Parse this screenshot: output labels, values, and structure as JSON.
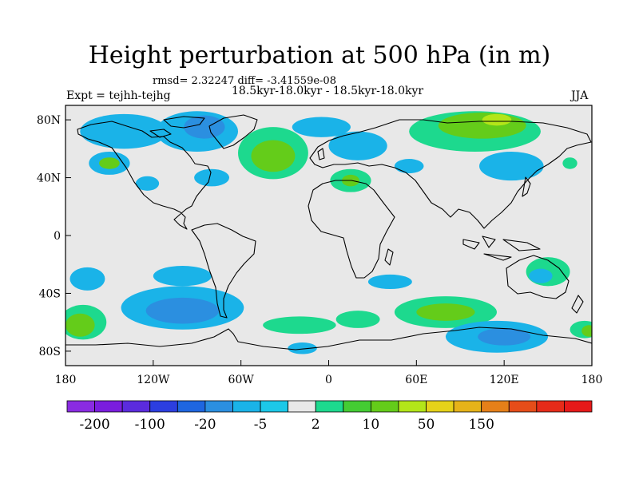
{
  "title": "Height perturbation at 500 hPa (in m)",
  "stats": "rmsd= 2.32247  diff= -3.41559e-08",
  "subtitle": "18.5kyr-18.0kyr - 18.5kyr-18.0kyr",
  "left_label": "Expt = tejhh-tejhg",
  "right_label": "JJA",
  "map": {
    "projection": "cylindrical equidistant",
    "lon_range": [
      -180,
      180
    ],
    "lat_range": [
      -90,
      90
    ],
    "lat_ticks": [
      {
        "lat": 80,
        "label": "80N"
      },
      {
        "lat": 40,
        "label": "40N"
      },
      {
        "lat": 0,
        "label": "0"
      },
      {
        "lat": -40,
        "label": "40S"
      },
      {
        "lat": -80,
        "label": "80S"
      }
    ],
    "lon_ticks": [
      {
        "lon": -180,
        "label": "180"
      },
      {
        "lon": -120,
        "label": "120W"
      },
      {
        "lon": -60,
        "label": "60W"
      },
      {
        "lon": 0,
        "label": "0"
      },
      {
        "lon": 60,
        "label": "60E"
      },
      {
        "lon": 120,
        "label": "120E"
      },
      {
        "lon": 180,
        "label": "180"
      }
    ],
    "background_color": "#e8e8e8",
    "anomalies": [
      {
        "lon": -140,
        "lat": 72,
        "rx": 30,
        "ry": 12,
        "color": "#1ab3e8"
      },
      {
        "lon": -90,
        "lat": 72,
        "rx": 28,
        "ry": 14,
        "color": "#1ab3e8"
      },
      {
        "lon": -85,
        "lat": 75,
        "rx": 14,
        "ry": 8,
        "color": "#2b8fe0"
      },
      {
        "lon": -150,
        "lat": 50,
        "rx": 14,
        "ry": 8,
        "color": "#1ab3e8"
      },
      {
        "lon": -150,
        "lat": 50,
        "rx": 7,
        "ry": 4,
        "color": "#64cc1a"
      },
      {
        "lon": -124,
        "lat": 36,
        "rx": 8,
        "ry": 5,
        "color": "#1ab3e8"
      },
      {
        "lon": -80,
        "lat": 40,
        "rx": 12,
        "ry": 6,
        "color": "#1ab3e8"
      },
      {
        "lon": -38,
        "lat": 57,
        "rx": 24,
        "ry": 18,
        "color": "#1dd98e"
      },
      {
        "lon": -38,
        "lat": 55,
        "rx": 15,
        "ry": 11,
        "color": "#64cc1a"
      },
      {
        "lon": -5,
        "lat": 75,
        "rx": 20,
        "ry": 7,
        "color": "#1ab3e8"
      },
      {
        "lon": 20,
        "lat": 62,
        "rx": 20,
        "ry": 10,
        "color": "#1ab3e8"
      },
      {
        "lon": 15,
        "lat": 38,
        "rx": 14,
        "ry": 8,
        "color": "#1dd98e"
      },
      {
        "lon": 15,
        "lat": 38,
        "rx": 6,
        "ry": 4,
        "color": "#64cc1a"
      },
      {
        "lon": 55,
        "lat": 48,
        "rx": 10,
        "ry": 5,
        "color": "#1ab3e8"
      },
      {
        "lon": 100,
        "lat": 72,
        "rx": 45,
        "ry": 14,
        "color": "#1dd98e"
      },
      {
        "lon": 105,
        "lat": 76,
        "rx": 30,
        "ry": 9,
        "color": "#64cc1a"
      },
      {
        "lon": 115,
        "lat": 80,
        "rx": 10,
        "ry": 4,
        "color": "#b3e619"
      },
      {
        "lon": 125,
        "lat": 48,
        "rx": 22,
        "ry": 10,
        "color": "#1ab3e8"
      },
      {
        "lon": 165,
        "lat": 50,
        "rx": 5,
        "ry": 4,
        "color": "#1dd98e"
      },
      {
        "lon": -165,
        "lat": -30,
        "rx": 12,
        "ry": 8,
        "color": "#1ab3e8"
      },
      {
        "lon": -168,
        "lat": -60,
        "rx": 16,
        "ry": 12,
        "color": "#1dd98e"
      },
      {
        "lon": -170,
        "lat": -62,
        "rx": 10,
        "ry": 8,
        "color": "#64cc1a"
      },
      {
        "lon": -100,
        "lat": -50,
        "rx": 42,
        "ry": 15,
        "color": "#1ab3e8"
      },
      {
        "lon": -100,
        "lat": -52,
        "rx": 25,
        "ry": 9,
        "color": "#2b8fe0"
      },
      {
        "lon": -100,
        "lat": -28,
        "rx": 20,
        "ry": 7,
        "color": "#1ab3e8"
      },
      {
        "lon": -18,
        "lat": -78,
        "rx": 10,
        "ry": 4,
        "color": "#1ab3e8"
      },
      {
        "lon": -20,
        "lat": -62,
        "rx": 25,
        "ry": 6,
        "color": "#1dd98e"
      },
      {
        "lon": 20,
        "lat": -58,
        "rx": 15,
        "ry": 6,
        "color": "#1dd98e"
      },
      {
        "lon": 42,
        "lat": -32,
        "rx": 15,
        "ry": 5,
        "color": "#1ab3e8"
      },
      {
        "lon": 80,
        "lat": -53,
        "rx": 35,
        "ry": 11,
        "color": "#1dd98e"
      },
      {
        "lon": 80,
        "lat": -53,
        "rx": 20,
        "ry": 6,
        "color": "#64cc1a"
      },
      {
        "lon": 115,
        "lat": -70,
        "rx": 35,
        "ry": 11,
        "color": "#1ab3e8"
      },
      {
        "lon": 120,
        "lat": -70,
        "rx": 18,
        "ry": 6,
        "color": "#2b8fe0"
      },
      {
        "lon": 150,
        "lat": -25,
        "rx": 15,
        "ry": 10,
        "color": "#1dd98e"
      },
      {
        "lon": 145,
        "lat": -28,
        "rx": 8,
        "ry": 5,
        "color": "#1ab3e8"
      },
      {
        "lon": 175,
        "lat": -65,
        "rx": 10,
        "ry": 6,
        "color": "#1dd98e"
      },
      {
        "lon": 178,
        "lat": -66,
        "rx": 5,
        "ry": 4,
        "color": "#64cc1a"
      }
    ]
  },
  "colorbar": {
    "colors": [
      "#8a2be2",
      "#7a1dde",
      "#5b2bde",
      "#2c3ee0",
      "#1e66e0",
      "#2b8fe0",
      "#1ab3e8",
      "#1cc8e8",
      "#e8e8e8",
      "#1dd98e",
      "#44cc33",
      "#64cc1a",
      "#b3e619",
      "#e6d219",
      "#e6b319",
      "#e68019",
      "#e64d19",
      "#e62b19",
      "#e61919"
    ],
    "labels": [
      {
        "index": 1,
        "text": "-200"
      },
      {
        "index": 3,
        "text": "-100"
      },
      {
        "index": 5,
        "text": "-20"
      },
      {
        "index": 7,
        "text": "-5"
      },
      {
        "index": 9,
        "text": "2"
      },
      {
        "index": 11,
        "text": "10"
      },
      {
        "index": 13,
        "text": "50"
      },
      {
        "index": 15,
        "text": "150"
      }
    ]
  }
}
